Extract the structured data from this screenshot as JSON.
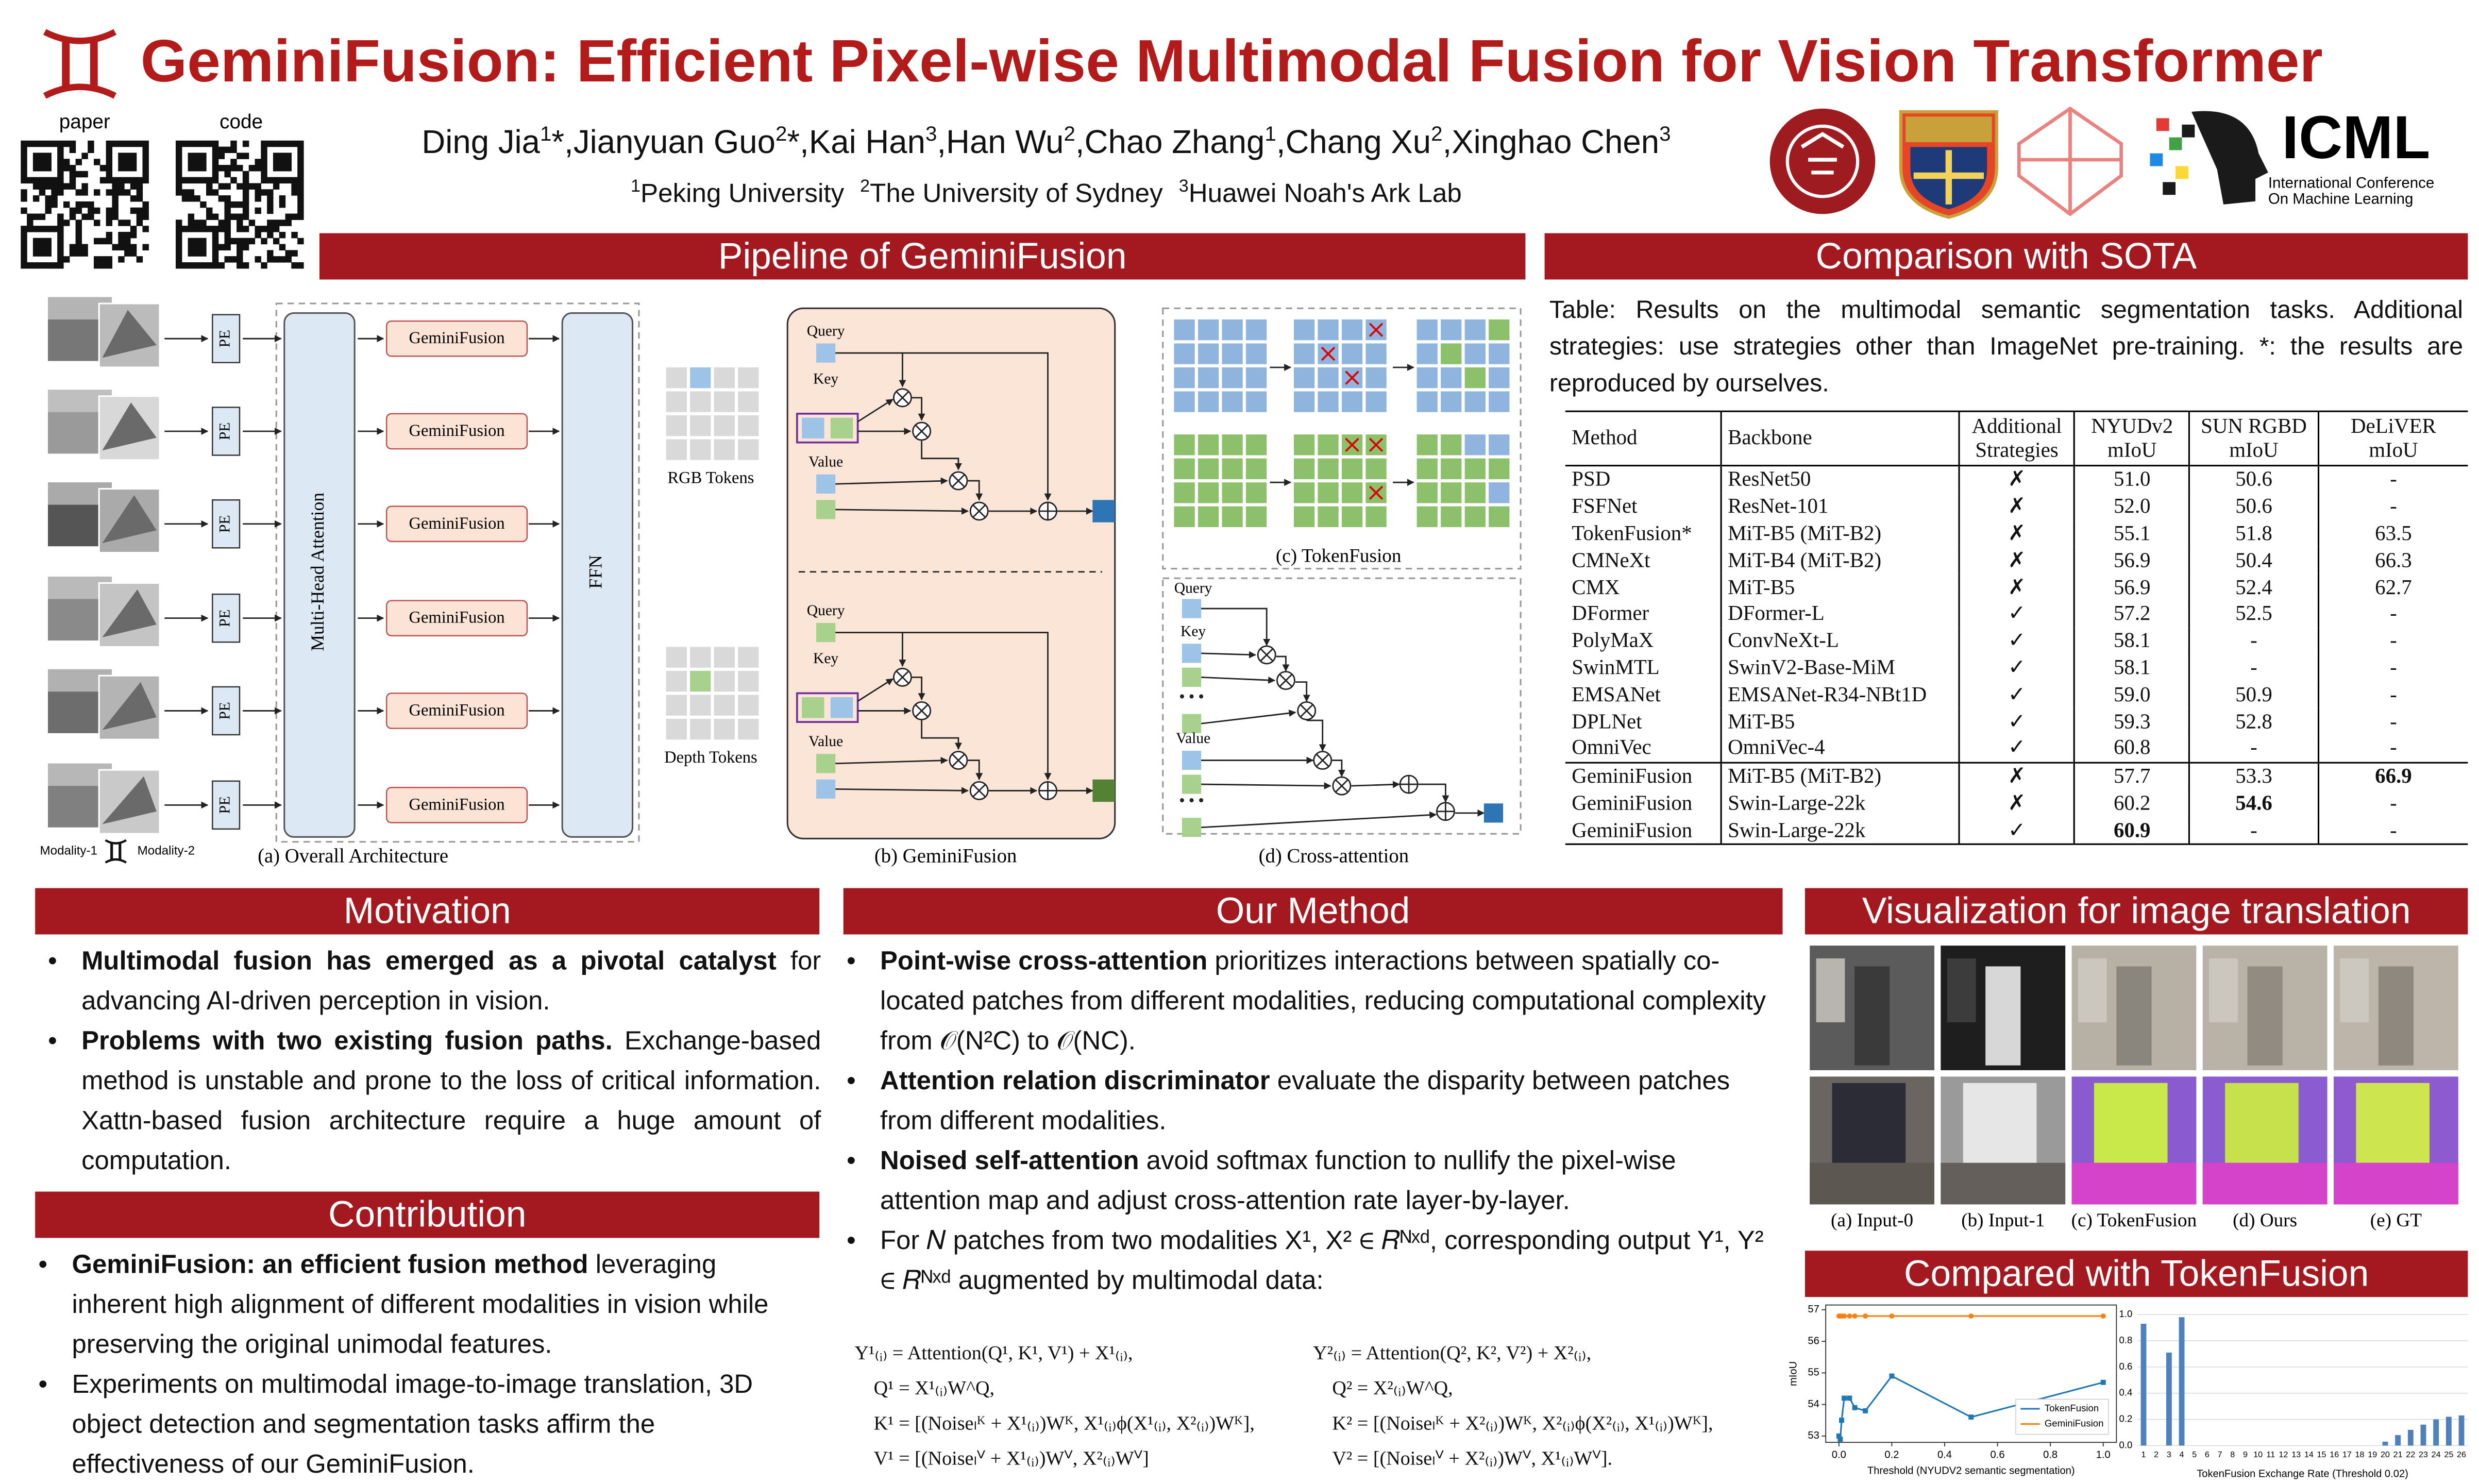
{
  "header": {
    "title": "GeminiFusion: Efficient Pixel-wise Multimodal Fusion for Vision Transformer",
    "qr_labels": [
      "paper",
      "code"
    ],
    "authors": [
      {
        "name": "Ding Jia",
        "sup": "1",
        "after": "*,"
      },
      {
        "name": "Jianyuan Guo",
        "sup": "2",
        "after": "*,"
      },
      {
        "name": "Kai Han",
        "sup": "3",
        "after": ","
      },
      {
        "name": "Han Wu",
        "sup": "2",
        "after": ","
      },
      {
        "name": "Chao Zhang",
        "sup": "1",
        "after": ","
      },
      {
        "name": "Chang Xu",
        "sup": "2",
        "after": ","
      },
      {
        "name": "Xinghao Chen",
        "sup": "3"
      }
    ],
    "affiliations": [
      {
        "sup": "1",
        "name": "Peking University"
      },
      {
        "sup": "2",
        "name": "The University of Sydney"
      },
      {
        "sup": "3",
        "name": "Huawei Noah's Ark Lab"
      }
    ],
    "icml": {
      "name": "ICML",
      "line1": "International Conference",
      "line2": "On Machine Learning"
    }
  },
  "pipeline": {
    "title": "Pipeline of GeminiFusion",
    "fusion_block": "GeminiFusion",
    "pe": "PE",
    "mha": "Multi-Head Attention",
    "ffn": "FFN",
    "modality_1": "Modality-1",
    "modality_2": "Modality-2",
    "rgb_tokens": "RGB Tokens",
    "depth_tokens": "Depth Tokens",
    "query": "Query",
    "key": "Key",
    "value": "Value",
    "captions": [
      "(a) Overall Architecture",
      "(b) GeminiFusion",
      "(c) TokenFusion",
      "(d) Cross-attention"
    ]
  },
  "comparison": {
    "title": "Comparison with SOTA",
    "caption": "Table: Results on the multimodal semantic segmentation tasks. Additional strategies: use strategies other than ImageNet pre-training. *: the results are reproduced by ourselves.",
    "table": {
      "header": [
        [
          "Method"
        ],
        [
          "Backbone"
        ],
        [
          "Additional",
          "Strategies"
        ],
        [
          "NYUDv2",
          "mIoU"
        ],
        [
          "SUN RGBD",
          "mIoU"
        ],
        [
          "DeLiVER",
          "mIoU"
        ]
      ],
      "rows": [
        [
          "PSD",
          "ResNet50",
          "✗",
          "51.0",
          "50.6",
          "-"
        ],
        [
          "FSFNet",
          "ResNet-101",
          "✗",
          "52.0",
          "50.6",
          "-"
        ],
        [
          "TokenFusion*",
          "MiT-B5 (MiT-B2)",
          "✗",
          "55.1",
          "51.8",
          "63.5"
        ],
        [
          "CMNeXt",
          "MiT-B4 (MiT-B2)",
          "✗",
          "56.9",
          "50.4",
          "66.3"
        ],
        [
          "CMX",
          "MiT-B5",
          "✗",
          "56.9",
          "52.4",
          "62.7"
        ],
        [
          "DFormer",
          "DFormer-L",
          "✓",
          "57.2",
          "52.5",
          "-"
        ],
        [
          "PolyMaX",
          "ConvNeXt-L",
          "✓",
          "58.1",
          "-",
          "-"
        ],
        [
          "SwinMTL",
          "SwinV2-Base-MiM",
          "✓",
          "58.1",
          "-",
          "-"
        ],
        [
          "EMSANet",
          "EMSANet-R34-NBt1D",
          "✓",
          "59.0",
          "50.9",
          "-"
        ],
        [
          "DPLNet",
          "MiT-B5",
          "✓",
          "59.3",
          "52.8",
          "-"
        ],
        [
          "OmniVec",
          "OmniVec-4",
          "✓",
          "60.8",
          "-",
          "-"
        ],
        [
          "GeminiFusion",
          "MiT-B5 (MiT-B2)",
          "✗",
          "57.7",
          "53.3",
          "66.9"
        ],
        [
          "GeminiFusion",
          "Swin-Large-22k",
          "✗",
          "60.2",
          "54.6",
          "-"
        ],
        [
          "GeminiFusion",
          "Swin-Large-22k",
          "✓",
          "60.9",
          "-",
          "-"
        ]
      ]
    }
  },
  "motivation": {
    "title": "Motivation",
    "items": [
      {
        "bold": "Multimodal fusion has emerged as a pivotal catalyst",
        "text": " for advancing AI-driven perception in vision."
      },
      {
        "bold": "Problems with two existing fusion paths.",
        "text": " Exchange-based method is unstable and prone to the loss of critical information. Xattn-based fusion architecture require a huge amount of computation."
      }
    ]
  },
  "contribution": {
    "title": "Contribution",
    "items": [
      {
        "bold": "GeminiFusion: an efficient fusion method",
        "text": " leveraging inherent high alignment of different modalities in vision while preserving the original unimodal features."
      },
      {
        "text": "Experiments on multimodal image-to-image translation, 3D object detection and segmentation tasks affirm the effectiveness of our GeminiFusion."
      }
    ]
  },
  "method": {
    "title": "Our Method",
    "items": [
      {
        "bold": "Point-wise cross-attention",
        "text": " prioritizes interactions between spatially co-located patches from different modalities, reducing computational complexity from 𝒪(N²C) to 𝒪(NC)."
      },
      {
        "bold": "Attention relation discriminator",
        "text": " evaluate the disparity between patches from different modalities."
      },
      {
        "bold": "Noised self-attention",
        "text": " avoid softmax function to nullify the pixel-wise attention map and adjust cross-attention rate layer-by-layer."
      },
      {
        "text": "For 𝑁 patches from two modalities X¹, X² ∈ 𝑅ᴺˣᵈ, corresponding output Y¹, Y² ∈ 𝑅ᴺˣᵈ augmented by multimodal data:"
      }
    ],
    "equations": {
      "left": [
        "Y¹₍ᵢ₎ = Attention(Q¹, K¹, V¹) + X¹₍ᵢ₎,",
        "Q¹ = X¹₍ᵢ₎W^Q,",
        "K¹ = [(Noiseₗᴷ + X¹₍ᵢ₎)Wᴷ,  X¹₍ᵢ₎ϕ(X¹₍ᵢ₎, X²₍ᵢ₎)Wᴷ],",
        "V¹ = [(Noiseₗⱽ + X¹₍ᵢ₎)Wⱽ,  X²₍ᵢ₎Wⱽ]"
      ],
      "right": [
        "Y²₍ᵢ₎ = Attention(Q², K², V²) + X²₍ᵢ₎,",
        "Q² = X²₍ᵢ₎W^Q,",
        "K² = [(Noiseₗᴷ + X²₍ᵢ₎)Wᴷ,  X²₍ᵢ₎ϕ(X²₍ᵢ₎, X¹₍ᵢ₎)Wᴷ],",
        "V² = [(Noiseₗⱽ + X²₍ᵢ₎)Wⱽ,  X¹₍ᵢ₎Wⱽ]."
      ]
    }
  },
  "visualization": {
    "title": "Visualization for image translation",
    "captions": [
      "(a) Input-0",
      "(b) Input-1",
      "(c) TokenFusion",
      "(d) Ours",
      "(e) GT"
    ]
  },
  "tokenfusion_comparison": {
    "title": "Compared with TokenFusion"
  },
  "chart_data": [
    {
      "type": "line",
      "x": [
        0,
        0.005,
        0.01,
        0.02,
        0.04,
        0.06,
        0.1,
        0.2,
        0.5,
        1.0
      ],
      "series": [
        {
          "name": "TokenFusion",
          "color": "#1f77b4",
          "marker": "square",
          "values": [
            53.0,
            52.9,
            53.5,
            54.2,
            54.2,
            53.9,
            53.8,
            54.9,
            53.6,
            54.7
          ]
        },
        {
          "name": "GeminiFusion",
          "color": "#ff7f0e",
          "marker": "circle",
          "values": [
            56.8,
            56.8,
            56.8,
            56.8,
            56.8,
            56.8,
            56.8,
            56.8,
            56.8,
            56.8
          ]
        }
      ],
      "xlabel": "Threshold (NYUDV2 semantic segmentation)",
      "ylabel": "mIoU",
      "xlim": [
        -0.05,
        1.05
      ],
      "ylim": [
        52.8,
        57.15
      ],
      "xticks": [
        {
          "value": 0,
          "label": "0.0"
        },
        0.2,
        0.4,
        0.6,
        0.8,
        {
          "value": 1,
          "label": "1.0"
        }
      ],
      "yticks": [
        53,
        54,
        55,
        56,
        57
      ],
      "legend": "lower right"
    },
    {
      "type": "bar",
      "categories": [
        "1",
        "2",
        "3",
        "4",
        "5",
        "6",
        "7",
        "8",
        "9",
        "10",
        "11",
        "12",
        "13",
        "14",
        "15",
        "16",
        "17",
        "18",
        "19",
        "20",
        "21",
        "22",
        "23",
        "24",
        "25",
        "26"
      ],
      "values": [
        0.93,
        0,
        0.71,
        0.98,
        0,
        0,
        0,
        0,
        0,
        0,
        0,
        0,
        0,
        0,
        0,
        0,
        0,
        0,
        0,
        0.03,
        0.08,
        0.12,
        0.16,
        0.2,
        0.22,
        0.23
      ],
      "color": "#4f81bd",
      "xlabel": "TokenFusion Exchange Rate (Threshold 0.02)",
      "ylim": [
        0,
        1.0
      ],
      "yticks": [
        {
          "value": 0,
          "label": "0.0"
        },
        0.2,
        0.4,
        0.6,
        0.8,
        {
          "value": 1,
          "label": "1.0"
        }
      ],
      "grid": true
    }
  ]
}
